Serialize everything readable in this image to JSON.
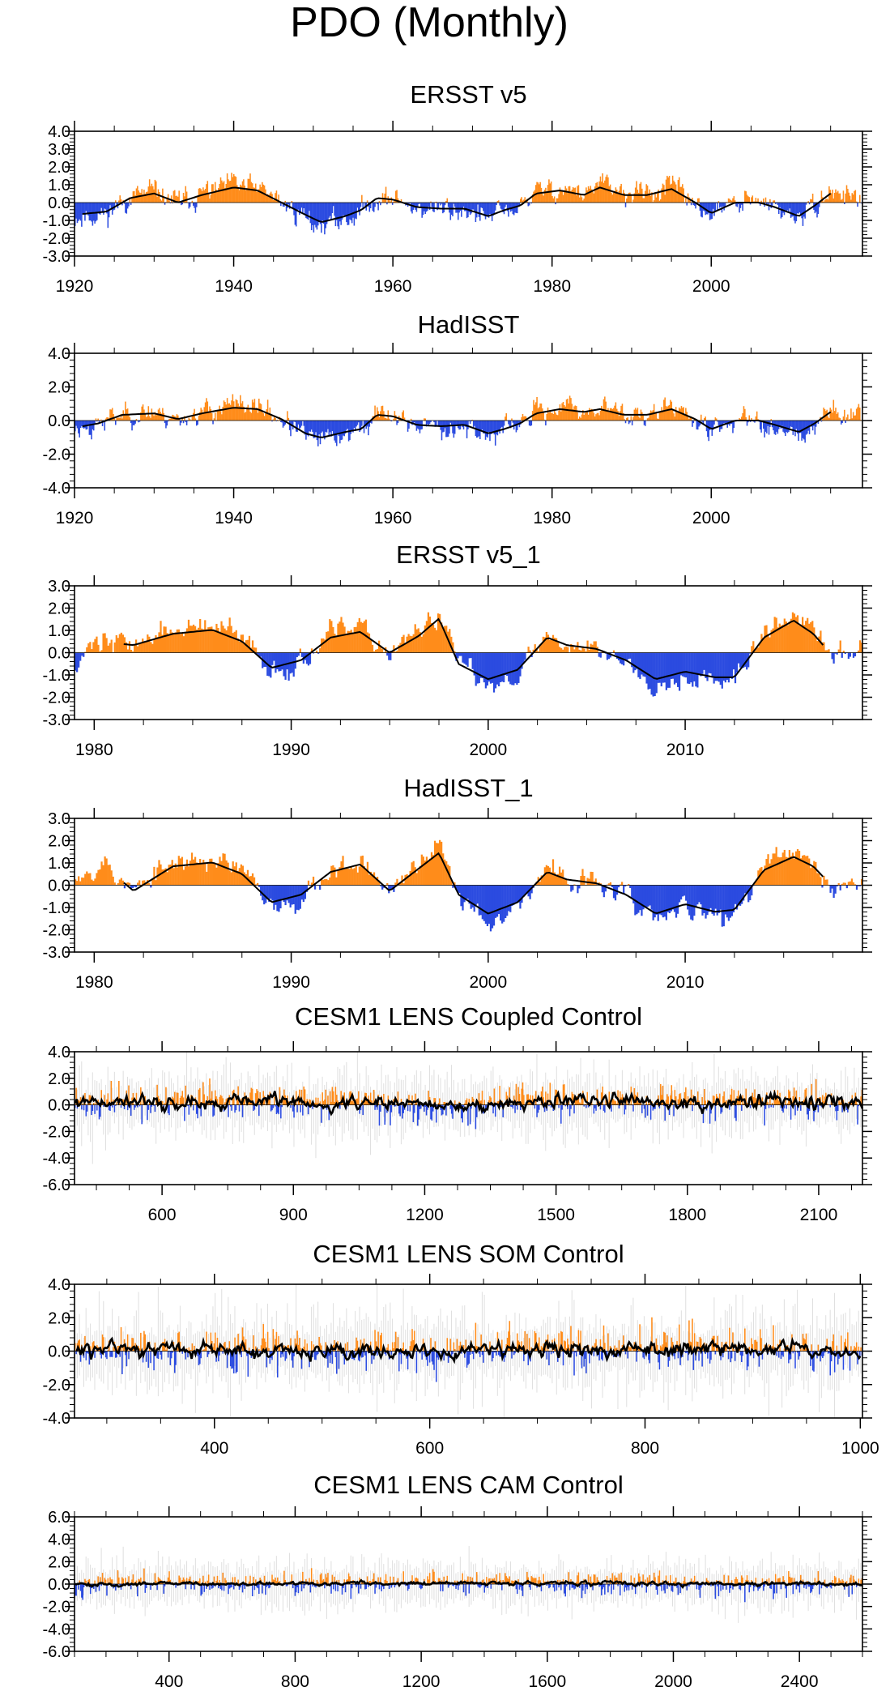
{
  "figure": {
    "title": "PDO (Monthly)",
    "colors": {
      "positive": "#ff8c1a",
      "negative": "#2b4be0",
      "smooth": "#000000",
      "axis": "#000000",
      "ensemble": "#bfbfbf"
    }
  },
  "chart_data": [
    {
      "type": "bar",
      "title": "ERSST v5",
      "xlim": [
        1920,
        2019
      ],
      "ylim": [
        -3.0,
        4.0
      ],
      "yticks": [
        4.0,
        3.0,
        2.0,
        1.0,
        0.0,
        -1.0,
        -2.0,
        -3.0
      ],
      "ytick_labels": [
        "4.0",
        "3.0",
        "2.0",
        "1.0",
        "0.0",
        "-1.0",
        "-2.0",
        "-3.0"
      ],
      "xticks": [
        1920,
        1940,
        1960,
        1980,
        2000
      ],
      "xtick_labels": [
        "1920",
        "1940",
        "1960",
        "1980",
        "2000"
      ],
      "seed": 11,
      "noise": 0.45,
      "ensemble": false,
      "smooth_range": [
        1921,
        2015
      ],
      "anchors": [
        [
          1920,
          -0.8
        ],
        [
          1924,
          -0.6
        ],
        [
          1927,
          0.3
        ],
        [
          1930,
          0.6
        ],
        [
          1933,
          0.0
        ],
        [
          1936,
          0.5
        ],
        [
          1940,
          1.0
        ],
        [
          1943,
          0.8
        ],
        [
          1946,
          0.0
        ],
        [
          1949,
          -0.8
        ],
        [
          1951,
          -1.3
        ],
        [
          1954,
          -0.9
        ],
        [
          1956,
          -0.5
        ],
        [
          1958,
          0.3
        ],
        [
          1960,
          0.2
        ],
        [
          1963,
          -0.3
        ],
        [
          1966,
          -0.4
        ],
        [
          1969,
          -0.4
        ],
        [
          1972,
          -0.9
        ],
        [
          1974,
          -0.5
        ],
        [
          1976,
          -0.2
        ],
        [
          1978,
          0.6
        ],
        [
          1981,
          0.8
        ],
        [
          1984,
          0.5
        ],
        [
          1986,
          1.0
        ],
        [
          1989,
          0.5
        ],
        [
          1992,
          0.5
        ],
        [
          1995,
          0.9
        ],
        [
          1998,
          0.0
        ],
        [
          2000,
          -0.7
        ],
        [
          2003,
          0.0
        ],
        [
          2006,
          0.0
        ],
        [
          2008,
          -0.3
        ],
        [
          2011,
          -0.9
        ],
        [
          2013,
          -0.2
        ],
        [
          2015,
          0.6
        ],
        [
          2017,
          0.5
        ],
        [
          2019,
          0.1
        ]
      ]
    },
    {
      "type": "bar",
      "title": "HadISST",
      "xlim": [
        1920,
        2019
      ],
      "ylim": [
        -4.0,
        4.0
      ],
      "yticks": [
        4.0,
        2.0,
        0.0,
        -2.0,
        -4.0
      ],
      "ytick_labels": [
        "4.0",
        "2.0",
        "0.0",
        "-2.0",
        "-4.0"
      ],
      "xticks": [
        1920,
        1940,
        1960,
        1980,
        2000
      ],
      "xtick_labels": [
        "1920",
        "1940",
        "1960",
        "1980",
        "2000"
      ],
      "seed": 23,
      "noise": 0.45,
      "ensemble": false,
      "smooth_range": [
        1921,
        2015
      ],
      "anchors": [
        [
          1920,
          -0.5
        ],
        [
          1923,
          -0.2
        ],
        [
          1926,
          0.4
        ],
        [
          1930,
          0.5
        ],
        [
          1933,
          0.1
        ],
        [
          1936,
          0.5
        ],
        [
          1940,
          0.9
        ],
        [
          1943,
          0.8
        ],
        [
          1946,
          0.1
        ],
        [
          1949,
          -0.9
        ],
        [
          1951,
          -1.2
        ],
        [
          1954,
          -0.8
        ],
        [
          1956,
          -0.6
        ],
        [
          1958,
          0.4
        ],
        [
          1960,
          0.3
        ],
        [
          1963,
          -0.3
        ],
        [
          1966,
          -0.4
        ],
        [
          1969,
          -0.3
        ],
        [
          1972,
          -0.9
        ],
        [
          1974,
          -0.6
        ],
        [
          1976,
          -0.2
        ],
        [
          1978,
          0.5
        ],
        [
          1981,
          0.8
        ],
        [
          1984,
          0.6
        ],
        [
          1986,
          0.8
        ],
        [
          1989,
          0.4
        ],
        [
          1992,
          0.4
        ],
        [
          1995,
          0.8
        ],
        [
          1998,
          0.1
        ],
        [
          2000,
          -0.6
        ],
        [
          2003,
          0.0
        ],
        [
          2006,
          0.0
        ],
        [
          2008,
          -0.3
        ],
        [
          2011,
          -0.8
        ],
        [
          2013,
          -0.2
        ],
        [
          2015,
          0.6
        ],
        [
          2017,
          0.5
        ],
        [
          2019,
          0.0
        ]
      ]
    },
    {
      "type": "bar",
      "title": "ERSST v5_1",
      "xlim": [
        1979,
        2019
      ],
      "ylim": [
        -3.0,
        3.0
      ],
      "yticks": [
        3.0,
        2.0,
        1.0,
        0.0,
        -1.0,
        -2.0,
        -3.0
      ],
      "ytick_labels": [
        "3.0",
        "2.0",
        "1.0",
        "0.0",
        "-1.0",
        "-2.0",
        "-3.0"
      ],
      "xticks": [
        1980,
        1990,
        2000,
        2010
      ],
      "xtick_labels": [
        "1980",
        "1990",
        "2000",
        "2010"
      ],
      "seed": 37,
      "noise": 0.35,
      "ensemble": false,
      "smooth_range": [
        1981.5,
        2017
      ],
      "anchors": [
        [
          1979,
          -0.5
        ],
        [
          1980,
          0.6
        ],
        [
          1982,
          0.4
        ],
        [
          1984,
          1.0
        ],
        [
          1986,
          1.2
        ],
        [
          1987.5,
          0.6
        ],
        [
          1989,
          -0.8
        ],
        [
          1990.5,
          -0.4
        ],
        [
          1992,
          0.8
        ],
        [
          1993.5,
          1.1
        ],
        [
          1995,
          0.0
        ],
        [
          1996.5,
          0.9
        ],
        [
          1997.5,
          1.8
        ],
        [
          1998.5,
          -0.6
        ],
        [
          2000,
          -1.4
        ],
        [
          2001.5,
          -0.9
        ],
        [
          2003,
          0.8
        ],
        [
          2004,
          0.4
        ],
        [
          2005.5,
          0.2
        ],
        [
          2007,
          -0.4
        ],
        [
          2008.5,
          -1.4
        ],
        [
          2010,
          -1.0
        ],
        [
          2011.5,
          -1.3
        ],
        [
          2012.5,
          -1.3
        ],
        [
          2014,
          0.8
        ],
        [
          2015.5,
          1.7
        ],
        [
          2016.5,
          1.0
        ],
        [
          2017.5,
          -0.2
        ],
        [
          2019,
          0.2
        ]
      ]
    },
    {
      "type": "bar",
      "title": "HadISST_1",
      "xlim": [
        1979,
        2019
      ],
      "ylim": [
        -3.0,
        3.0
      ],
      "yticks": [
        3.0,
        2.0,
        1.0,
        0.0,
        -1.0,
        -2.0,
        -3.0
      ],
      "ytick_labels": [
        "3.0",
        "2.0",
        "1.0",
        "0.0",
        "-1.0",
        "-2.0",
        "-3.0"
      ],
      "xticks": [
        1980,
        1990,
        2000,
        2010
      ],
      "xtick_labels": [
        "1980",
        "1990",
        "2000",
        "2010"
      ],
      "seed": 53,
      "noise": 0.35,
      "ensemble": false,
      "smooth_range": [
        1981.5,
        2017
      ],
      "anchors": [
        [
          1979,
          0.6
        ],
        [
          1980.5,
          1.0
        ],
        [
          1982,
          -0.3
        ],
        [
          1984,
          1.0
        ],
        [
          1986,
          1.2
        ],
        [
          1987.5,
          0.6
        ],
        [
          1989,
          -0.9
        ],
        [
          1990.5,
          -0.5
        ],
        [
          1992,
          0.7
        ],
        [
          1993.5,
          1.1
        ],
        [
          1995,
          -0.3
        ],
        [
          1996.5,
          0.9
        ],
        [
          1997.5,
          1.7
        ],
        [
          1998.5,
          -0.5
        ],
        [
          2000,
          -1.5
        ],
        [
          2001.5,
          -0.9
        ],
        [
          2003,
          0.7
        ],
        [
          2004,
          0.3
        ],
        [
          2005.5,
          0.1
        ],
        [
          2007,
          -0.5
        ],
        [
          2008.5,
          -1.5
        ],
        [
          2010,
          -1.0
        ],
        [
          2011.5,
          -1.4
        ],
        [
          2012.5,
          -1.3
        ],
        [
          2014,
          0.8
        ],
        [
          2015.5,
          1.5
        ],
        [
          2016.5,
          1.0
        ],
        [
          2017.5,
          -0.1
        ],
        [
          2019,
          0.1
        ]
      ]
    },
    {
      "type": "bar",
      "title": "CESM1 LENS Coupled Control",
      "xlim": [
        400,
        2200
      ],
      "ylim": [
        -6.0,
        4.0
      ],
      "yticks": [
        4.0,
        2.0,
        0.0,
        -2.0,
        -4.0,
        -6.0
      ],
      "ytick_labels": [
        "4.0",
        "2.0",
        "0.0",
        "-2.0",
        "-4.0",
        "-6.0"
      ],
      "xticks": [
        600,
        900,
        1200,
        1500,
        1800,
        2100
      ],
      "xtick_labels": [
        "600",
        "900",
        "1200",
        "1500",
        "1800",
        "2100"
      ],
      "seed": 71,
      "noise": 0.75,
      "ensemble": true,
      "smooth_wiggle": 0.6,
      "smooth_range": [
        402,
        2200
      ],
      "anchors": [
        [
          400,
          0.1
        ],
        [
          800,
          0.3
        ],
        [
          1200,
          0.0
        ],
        [
          1600,
          0.2
        ],
        [
          2000,
          0.2
        ],
        [
          2200,
          0.1
        ]
      ]
    },
    {
      "type": "bar",
      "title": "CESM1 LENS SOM Control",
      "xlim": [
        270,
        1002
      ],
      "ylim": [
        -4.0,
        4.0
      ],
      "yticks": [
        4.0,
        2.0,
        0.0,
        -2.0,
        -4.0
      ],
      "ytick_labels": [
        "4.0",
        "2.0",
        "0.0",
        "-2.0",
        "-4.0"
      ],
      "xticks": [
        400,
        600,
        800,
        1000
      ],
      "xtick_labels": [
        "400",
        "600",
        "800",
        "1000"
      ],
      "seed": 89,
      "noise": 0.75,
      "ensemble": true,
      "smooth_wiggle": 0.55,
      "smooth_range": [
        272,
        1000
      ],
      "anchors": [
        [
          270,
          0.1
        ],
        [
          500,
          0.0
        ],
        [
          700,
          0.1
        ],
        [
          900,
          0.1
        ],
        [
          1002,
          0.0
        ]
      ]
    },
    {
      "type": "bar",
      "title": "CESM1 LENS CAM Control",
      "xlim": [
        100,
        2600
      ],
      "ylim": [
        -6.0,
        6.0
      ],
      "yticks": [
        6.0,
        4.0,
        2.0,
        0.0,
        -2.0,
        -4.0,
        -6.0
      ],
      "ytick_labels": [
        "6.0",
        "4.0",
        "2.0",
        "0.0",
        "-2.0",
        "-4.0",
        "-6.0"
      ],
      "xticks": [
        400,
        800,
        1200,
        1600,
        2000,
        2400
      ],
      "xtick_labels": [
        "400",
        "800",
        "1200",
        "1600",
        "2000",
        "2400"
      ],
      "seed": 97,
      "noise": 0.6,
      "ensemble": true,
      "smooth_wiggle": 0.2,
      "smooth_range": [
        102,
        2600
      ],
      "anchors": [
        [
          100,
          0.0
        ],
        [
          1300,
          0.05
        ],
        [
          2600,
          0.0
        ]
      ]
    }
  ]
}
